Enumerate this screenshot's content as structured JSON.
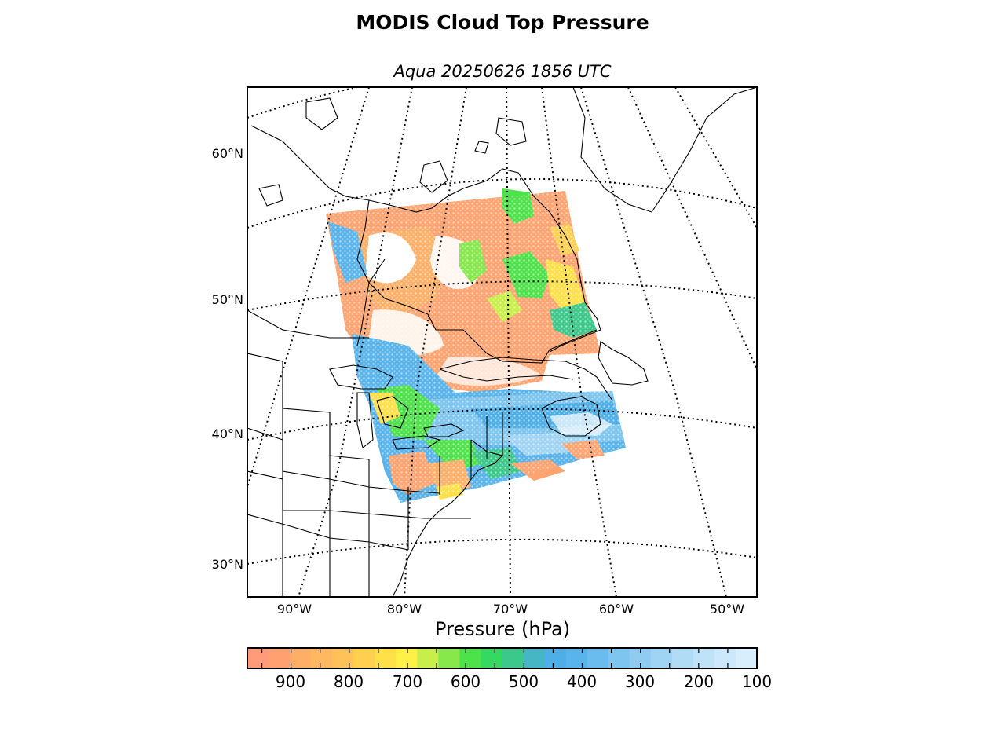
{
  "title": "MODIS Cloud Top Pressure",
  "subtitle": "Aqua 20250626 1856 UTC",
  "map": {
    "projection": "lambert-conformal",
    "latitude_labels": [
      "60°N",
      "50°N",
      "40°N",
      "30°N"
    ],
    "longitude_labels": [
      "90°W",
      "80°W",
      "70°W",
      "60°W",
      "50°W"
    ],
    "graticule_style": "dotted"
  },
  "colorbar": {
    "label": "Pressure (hPa)",
    "ticks": [
      "900",
      "800",
      "700",
      "600",
      "500",
      "400",
      "300",
      "200",
      "100"
    ],
    "range": [
      975,
      100
    ],
    "colors": [
      "#ff9a7a",
      "#ffa070",
      "#ffae68",
      "#ffb760",
      "#ffc258",
      "#ffd050",
      "#ffe048",
      "#fff048",
      "#c8ee4a",
      "#86e84a",
      "#4ee24a",
      "#35d860",
      "#3cc88a",
      "#46b6c4",
      "#4eaee6",
      "#5ab4ec",
      "#6abcee",
      "#7ec6f0",
      "#90ccf2",
      "#a0d4f4",
      "#b0dcf6",
      "#bfe2f8",
      "#cde8fa",
      "#d8eefc"
    ]
  }
}
